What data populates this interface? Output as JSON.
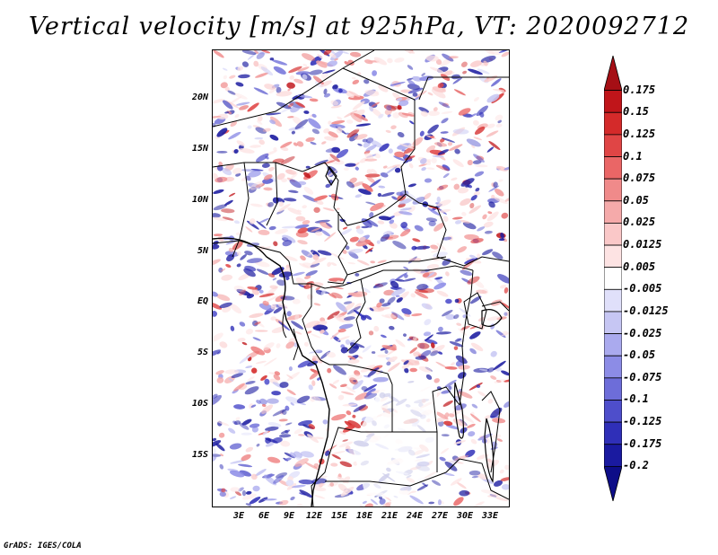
{
  "title": "Vertical velocity [m/s] at 925hPa, VT: 2020092712",
  "footer": "GrADS: IGES/COLA",
  "map": {
    "lat_labels": [
      "20N",
      "15N",
      "10N",
      "5N",
      "EQ",
      "5S",
      "10S",
      "15S"
    ],
    "lon_labels": [
      "3E",
      "6E",
      "9E",
      "12E",
      "15E",
      "18E",
      "21E",
      "24E",
      "27E",
      "30E",
      "33E"
    ],
    "lat_range": [
      -20,
      24.5
    ],
    "lon_range": [
      0,
      35
    ]
  },
  "colorbar": {
    "labels": [
      "0.175",
      "0.15",
      "0.125",
      "0.1",
      "0.075",
      "0.05",
      "0.025",
      "0.0125",
      "0.005",
      "-0.005",
      "-0.0125",
      "-0.025",
      "-0.05",
      "-0.075",
      "-0.1",
      "-0.125",
      "-0.175",
      "-0.2"
    ],
    "colors": [
      "#a50f15",
      "#c0151a",
      "#d42a2a",
      "#e04545",
      "#ea6666",
      "#f08a8a",
      "#f5aaaa",
      "#fac8c8",
      "#fde3e3",
      "#ffffff",
      "#e0e0fa",
      "#c6c6f3",
      "#aaaaee",
      "#8c8ce6",
      "#6d6dd9",
      "#4e4ecb",
      "#2f2fb8",
      "#1a1aa0",
      "#0d0d88"
    ]
  }
}
